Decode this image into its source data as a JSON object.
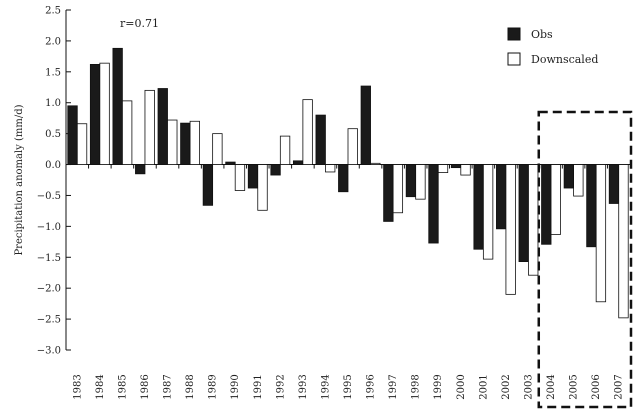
{
  "chart_data": {
    "type": "bar",
    "title": "",
    "xlabel": "",
    "ylabel": "Precipitation anomaly (mm/d)",
    "ylim": [
      -3.0,
      2.5
    ],
    "yticks": [
      2.5,
      2.0,
      1.5,
      1.0,
      0.5,
      0.0,
      -0.5,
      -1.0,
      -1.5,
      -2.0,
      -2.5,
      -3.0
    ],
    "ytick_labels": [
      "2.5",
      "2.0",
      "1.5",
      "1.0",
      "0.5",
      "0.0",
      "−0.5",
      "−1.0",
      "−1.5",
      "−2.0",
      "−2.5",
      "−3.0"
    ],
    "grid": false,
    "legend_position": "top-right",
    "annotation": "r=0.71",
    "highlight_box": {
      "from": "2004",
      "to": "2007",
      "style": "dashed"
    },
    "categories": [
      "1983",
      "1984",
      "1985",
      "1986",
      "1987",
      "1988",
      "1989",
      "1990",
      "1991",
      "1992",
      "1993",
      "1994",
      "1995",
      "1996",
      "1997",
      "1998",
      "1999",
      "2000",
      "2001",
      "2002",
      "2003",
      "2004",
      "2005",
      "2006",
      "2007"
    ],
    "series": [
      {
        "name": "Obs",
        "color": "#1a1a1a",
        "values": [
          0.95,
          1.62,
          1.88,
          -0.15,
          1.23,
          0.67,
          -0.66,
          0.04,
          -0.38,
          -0.17,
          0.06,
          0.8,
          -0.44,
          1.27,
          -0.92,
          -0.52,
          -1.27,
          -0.05,
          -1.37,
          -1.04,
          -1.57,
          -1.29,
          -0.38,
          -1.33,
          -0.63
        ]
      },
      {
        "name": "Downscaled",
        "color": "#ffffff",
        "values": [
          0.66,
          1.64,
          1.03,
          1.2,
          0.72,
          0.7,
          0.5,
          -0.42,
          -0.74,
          0.46,
          1.05,
          -0.12,
          0.58,
          0.02,
          -0.78,
          -0.56,
          -0.13,
          -0.17,
          -1.53,
          -2.1,
          -1.79,
          -1.13,
          -0.51,
          -2.22,
          -2.48
        ]
      }
    ]
  }
}
